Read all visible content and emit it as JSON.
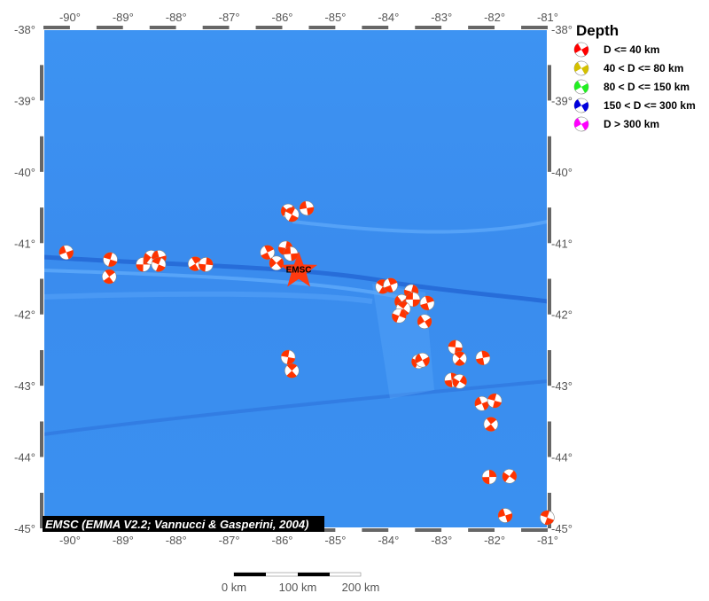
{
  "map": {
    "lon_range": [
      -90.5,
      -81
    ],
    "lat_range": [
      -45,
      -38
    ],
    "lon_ticks": [
      -90,
      -89,
      -88,
      -87,
      -86,
      -85,
      -84,
      -83,
      -82,
      -81
    ],
    "lat_ticks": [
      -38,
      -39,
      -40,
      -41,
      -42,
      -43,
      -44,
      -45
    ],
    "degree_symbol": "°",
    "sea_color": "#3a8fee",
    "credit": "EMSC (EMMA V2.2; Vannucci & Gasperini, 2004)"
  },
  "epicenter": {
    "label": "EMSC",
    "lon": -85.69,
    "lat": -41.39,
    "color": "#ff3a10"
  },
  "legend": {
    "title": "Depth",
    "items": [
      {
        "label": "D <= 40 km",
        "color": "#ff0000"
      },
      {
        "label": "40 < D <= 80 km",
        "color": "#d4c000"
      },
      {
        "label": "80 < D <= 150 km",
        "color": "#22ee22"
      },
      {
        "label": "150 < D <= 300 km",
        "color": "#0000dd"
      },
      {
        "label": "D > 300 km",
        "color": "#ff00ff"
      }
    ]
  },
  "scale_bar": {
    "labels": [
      "0 km",
      "100 km",
      "200 km"
    ]
  },
  "mechanisms_color": "#ff3300",
  "mechanisms": [
    [
      -90.07,
      -41.13
    ],
    [
      -89.24,
      -41.23
    ],
    [
      -89.26,
      -41.47
    ],
    [
      -88.62,
      -41.3
    ],
    [
      -88.47,
      -41.2
    ],
    [
      -88.32,
      -41.2
    ],
    [
      -88.33,
      -41.3
    ],
    [
      -87.64,
      -41.29
    ],
    [
      -87.44,
      -41.3
    ],
    [
      -85.89,
      -40.55
    ],
    [
      -85.54,
      -40.51
    ],
    [
      -85.82,
      -40.6
    ],
    [
      -86.28,
      -41.13
    ],
    [
      -85.94,
      -41.07
    ],
    [
      -86.11,
      -41.28
    ],
    [
      -85.84,
      -41.15
    ],
    [
      -84.11,
      -41.61
    ],
    [
      -83.96,
      -41.59
    ],
    [
      -83.57,
      -41.68
    ],
    [
      -83.75,
      -41.82
    ],
    [
      -83.54,
      -41.79
    ],
    [
      -83.72,
      -41.92
    ],
    [
      -83.27,
      -41.84
    ],
    [
      -83.8,
      -42.02
    ],
    [
      -83.32,
      -42.1
    ],
    [
      -82.74,
      -42.46
    ],
    [
      -82.66,
      -42.62
    ],
    [
      -82.22,
      -42.61
    ],
    [
      -83.43,
      -42.66
    ],
    [
      -83.36,
      -42.64
    ],
    [
      -85.89,
      -42.6
    ],
    [
      -85.82,
      -42.79
    ],
    [
      -82.81,
      -42.92
    ],
    [
      -82.66,
      -42.94
    ],
    [
      -82.24,
      -43.25
    ],
    [
      -82.0,
      -43.21
    ],
    [
      -82.07,
      -43.54
    ],
    [
      -82.1,
      -44.28
    ],
    [
      -81.72,
      -44.27
    ],
    [
      -81.8,
      -44.82
    ],
    [
      -81.01,
      -44.85
    ]
  ]
}
